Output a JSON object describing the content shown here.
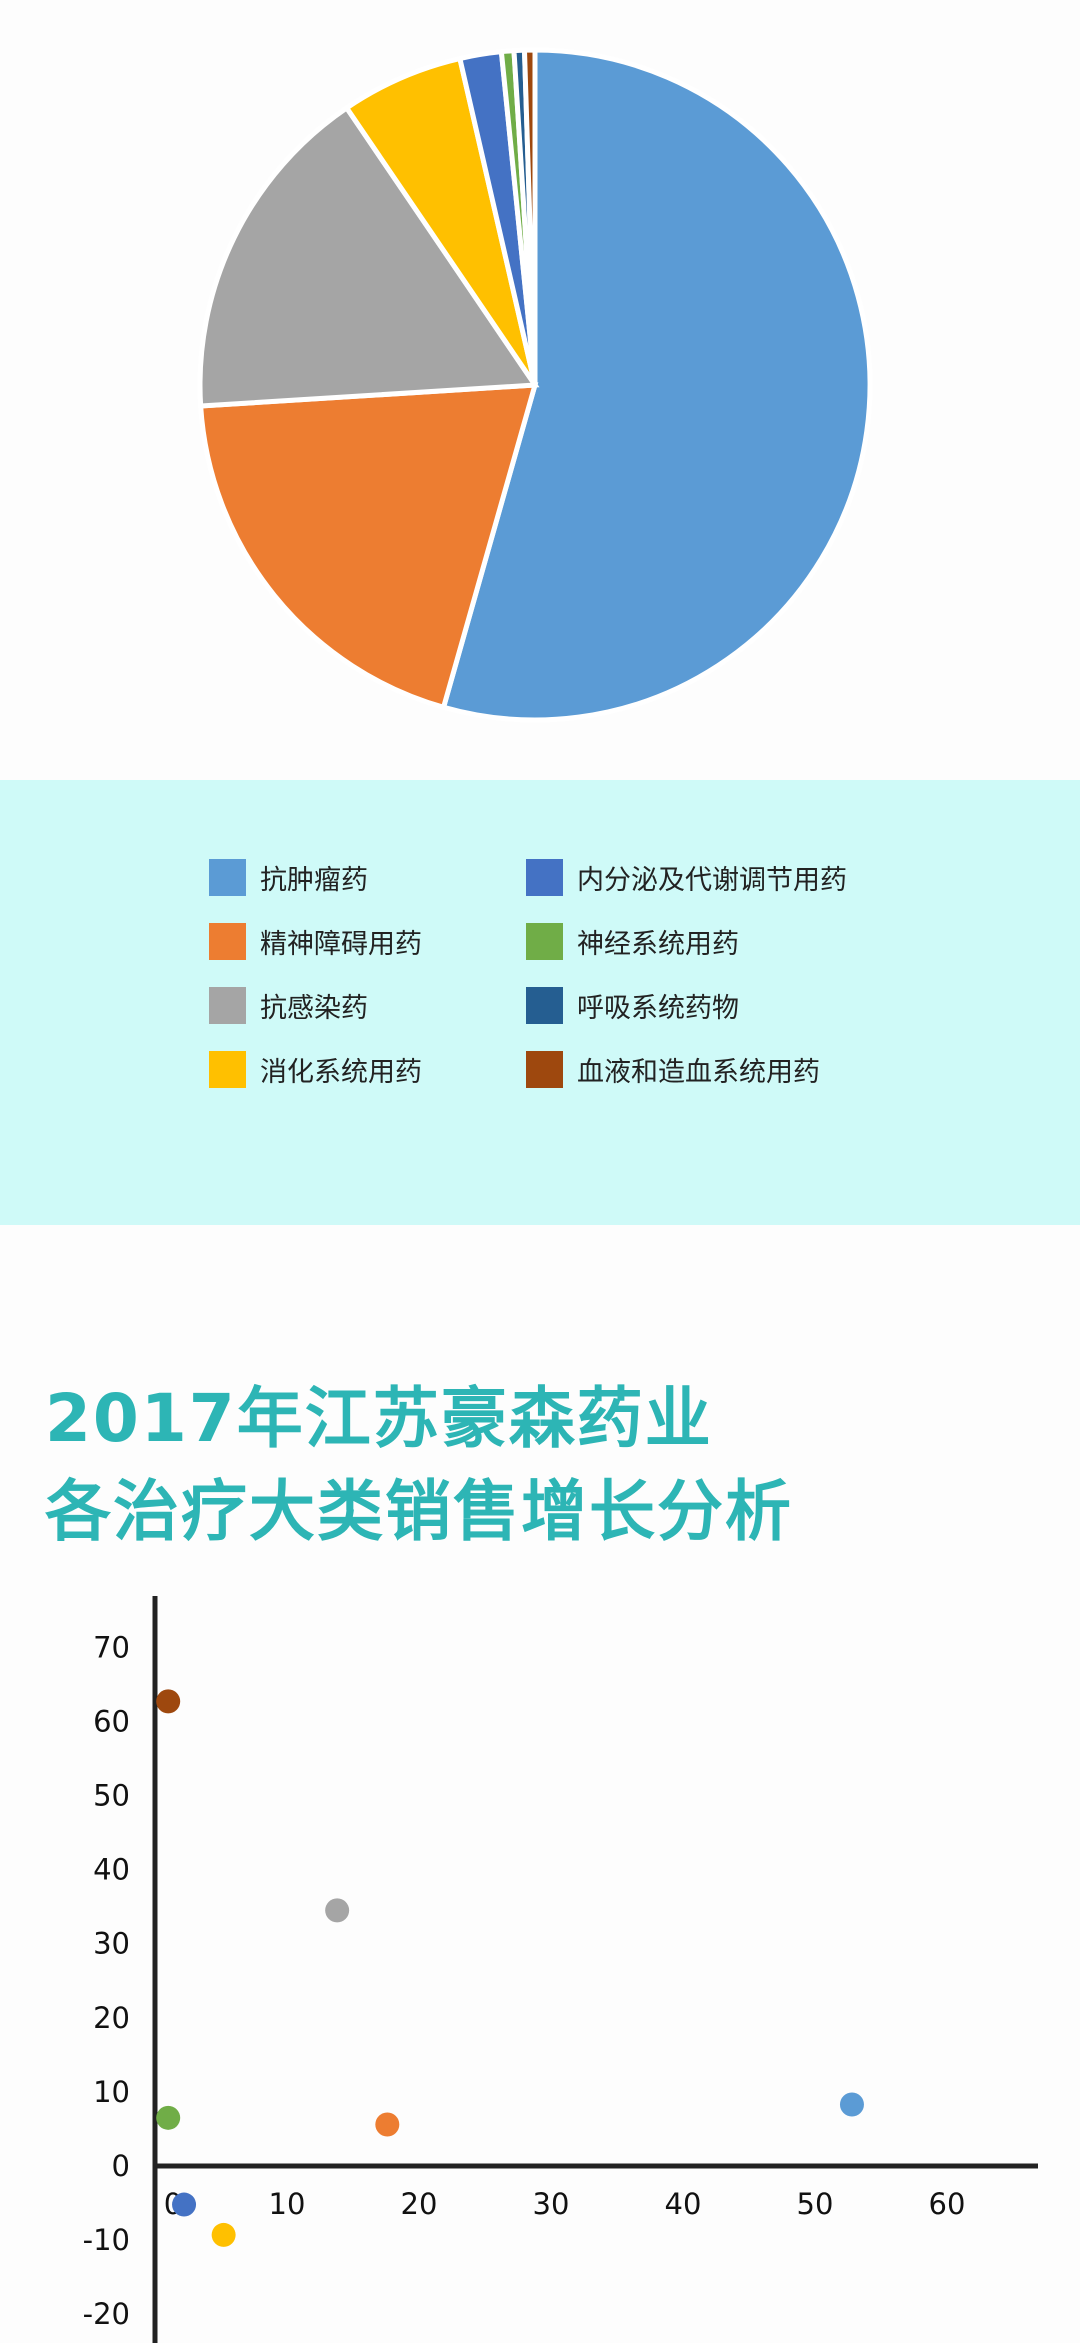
{
  "chart_data": [
    {
      "type": "pie",
      "categories": [
        "抗肿瘤药",
        "精神障碍用药",
        "抗感染药",
        "消化系统用药",
        "内分泌及代谢调节用药",
        "神经系统用药",
        "呼吸系统药物",
        "血液和造血系统用药"
      ],
      "values": [
        54.4,
        19.6,
        16.5,
        5.9,
        2.0,
        0.6,
        0.5,
        0.5
      ],
      "colors": [
        "#5b9bd5",
        "#ed7d31",
        "#a5a5a5",
        "#ffc000",
        "#4472c4",
        "#70ad47",
        "#255e91",
        "#9e480e"
      ],
      "start": "top",
      "direction": "clockwise",
      "legend": {
        "placement": "bottom",
        "columns": [
          [
            "抗肿瘤药",
            "精神障碍用药",
            "抗感染药",
            "消化系统用药"
          ],
          [
            "内分泌及代谢调节用药",
            "神经系统用药",
            "呼吸系统药物",
            "血液和造血系统用药"
          ]
        ]
      }
    },
    {
      "type": "scatter",
      "title_lines": [
        "2017年江苏豪森药业",
        "各治疗大类销售增长分析"
      ],
      "title_color": "#2db5b5",
      "xlim": [
        0,
        65
      ],
      "ylim": [
        -20,
        75
      ],
      "xticks": [
        0,
        10,
        20,
        30,
        40,
        50,
        60
      ],
      "yticks": [
        70,
        60,
        50,
        40,
        30,
        20,
        10,
        0,
        -10,
        -20
      ],
      "grid": false,
      "points": [
        {
          "category": "抗肿瘤药",
          "x": 52.8,
          "y": 8.3,
          "color": "#5b9bd5"
        },
        {
          "category": "精神障碍用药",
          "x": 17.6,
          "y": 5.6,
          "color": "#ed7d31"
        },
        {
          "category": "抗感染药",
          "x": 13.8,
          "y": 34.5,
          "color": "#a5a5a5"
        },
        {
          "category": "消化系统用药",
          "x": 5.2,
          "y": -9.3,
          "color": "#ffc000"
        },
        {
          "category": "内分泌及代谢调节用药",
          "x": 2.2,
          "y": -5.2,
          "color": "#4472c4"
        },
        {
          "category": "神经系统用药",
          "x": 1.0,
          "y": 6.5,
          "color": "#70ad47"
        },
        {
          "category": "血液和造血系统用药",
          "x": 1.0,
          "y": 62.7,
          "color": "#9e480e"
        }
      ]
    }
  ]
}
